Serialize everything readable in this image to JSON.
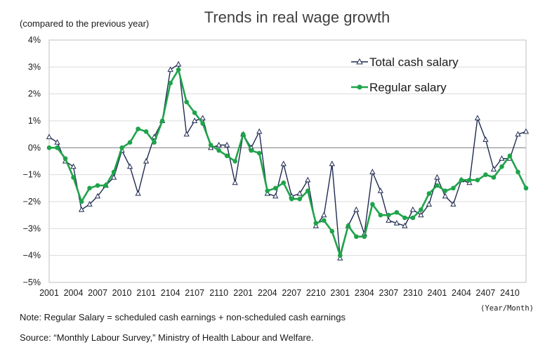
{
  "chart_data": {
    "type": "line",
    "title": "Trends in real wage growth",
    "subtitle": "(compared to the previous year)",
    "xlabel": "(Year/Month)",
    "ylabel": "",
    "ylim": [
      -5,
      4
    ],
    "y_ticks": [
      "4%",
      "3%",
      "2%",
      "1%",
      "0%",
      "−1%",
      "−2%",
      "−3%",
      "−4%",
      "−5%"
    ],
    "x_tick_labels": [
      "2001",
      "2004",
      "2007",
      "2010",
      "2101",
      "2104",
      "2107",
      "2110",
      "2201",
      "2204",
      "2207",
      "2210",
      "2301",
      "2304",
      "2307",
      "2310",
      "2401",
      "2404",
      "2407",
      "2410"
    ],
    "x_start": "2001",
    "x_end": "2412",
    "grid": true,
    "legend_position": "top-right",
    "series": [
      {
        "name": "Total cash salary",
        "color": "#1f2a50",
        "marker": "open-triangle",
        "values": [
          0.4,
          0.2,
          -0.5,
          -0.7,
          -2.3,
          -2.1,
          -1.8,
          -1.4,
          -1.1,
          -0.1,
          -0.7,
          -1.7,
          -0.5,
          0.4,
          1.0,
          2.9,
          3.1,
          0.5,
          1.0,
          1.1,
          0.0,
          0.1,
          0.1,
          -1.3,
          0.5,
          0.0,
          0.6,
          -1.7,
          -1.8,
          -0.6,
          -1.8,
          -1.7,
          -1.2,
          -2.9,
          -2.5,
          -0.6,
          -4.1,
          -2.9,
          -2.3,
          -3.2,
          -0.9,
          -1.6,
          -2.7,
          -2.8,
          -2.9,
          -2.3,
          -2.5,
          -2.1,
          -1.1,
          -1.8,
          -2.1,
          -1.2,
          -1.3,
          1.1,
          0.3,
          -0.8,
          -0.4,
          -0.4,
          0.5,
          0.6
        ]
      },
      {
        "name": "Regular salary",
        "color": "#1fa34a",
        "marker": "filled-circle",
        "values": [
          0.0,
          0.0,
          -0.4,
          -1.1,
          -2.0,
          -1.5,
          -1.4,
          -1.4,
          -0.9,
          0.0,
          0.2,
          0.7,
          0.6,
          0.2,
          1.0,
          2.4,
          2.9,
          1.7,
          1.3,
          0.9,
          0.1,
          -0.1,
          -0.3,
          -0.5,
          0.5,
          -0.1,
          -0.2,
          -1.6,
          -1.5,
          -1.3,
          -1.9,
          -1.9,
          -1.6,
          -2.8,
          -2.7,
          -3.1,
          -4.0,
          -2.9,
          -3.3,
          -3.3,
          -2.1,
          -2.5,
          -2.5,
          -2.4,
          -2.6,
          -2.6,
          -2.3,
          -1.7,
          -1.4,
          -1.6,
          -1.5,
          -1.2,
          -1.2,
          -1.2,
          -1.0,
          -1.1,
          -0.7,
          -0.3,
          -0.9,
          -1.5
        ]
      }
    ]
  },
  "notes": {
    "note": "Note: Regular Salary = scheduled cash earnings + non-scheduled cash earnings",
    "source": "Source: “Monthly Labour Survey,” Ministry of Health Labour and Welfare."
  }
}
